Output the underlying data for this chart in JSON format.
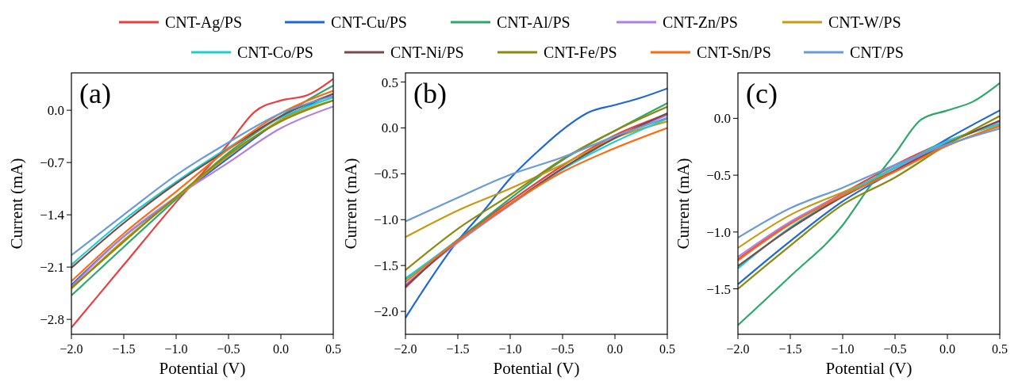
{
  "chart_data": [
    {
      "type": "line",
      "annotations": [
        "(a)"
      ],
      "xlabel": "Potential (V)",
      "ylabel": "Current (mA)",
      "xlim": [
        -2,
        0.5
      ],
      "ylim": [
        -3.0,
        0.5
      ],
      "xticks": [
        {
          "value": -2,
          "label": "−2.0"
        },
        -1.5,
        {
          "value": -1,
          "label": "−1.0"
        },
        -0.5,
        {
          "value": 0,
          "label": "0.0"
        },
        0.5
      ],
      "yticks": [
        {
          "value": 0,
          "label": "0.0"
        },
        -0.7,
        -1.4,
        -2.1,
        -2.8
      ],
      "legend": "top",
      "x": [
        -2,
        -1.5,
        -1,
        -0.5,
        0,
        0.5
      ],
      "series": [
        {
          "name": "CNT-Ag/PS",
          "color": "#e8403f",
          "x": [
            -2,
            -1.5,
            -1,
            -0.5,
            -0.25,
            0,
            0.25,
            0.5
          ],
          "values": [
            -2.91,
            -2.07,
            -1.23,
            -0.45,
            -0.02,
            0.13,
            0.2,
            0.42
          ]
        },
        {
          "name": "CNT-Cu/PS",
          "color": "#1f66d6",
          "values": [
            -2.34,
            -1.69,
            -1.17,
            -0.64,
            -0.13,
            0.22
          ]
        },
        {
          "name": "CNT-Al/PS",
          "color": "#2ea86a",
          "values": [
            -2.48,
            -1.83,
            -1.19,
            -0.57,
            -0.08,
            0.33
          ]
        },
        {
          "name": "CNT-Zn/PS",
          "color": "#b07fe0",
          "values": [
            -2.36,
            -1.69,
            -1.16,
            -0.7,
            -0.24,
            0.05
          ]
        },
        {
          "name": "CNT-W/PS",
          "color": "#c99a10",
          "values": [
            -2.39,
            -1.74,
            -1.17,
            -0.61,
            -0.13,
            0.13
          ]
        },
        {
          "name": "CNT-Co/PS",
          "color": "#1ccfcf",
          "values": [
            -2.07,
            -1.47,
            -0.96,
            -0.5,
            -0.1,
            0.17
          ]
        },
        {
          "name": "CNT-Ni/PS",
          "color": "#7a4a4a",
          "values": [
            -2.11,
            -1.51,
            -0.98,
            -0.52,
            -0.08,
            0.22
          ]
        },
        {
          "name": "CNT-Fe/PS",
          "color": "#8a8a10",
          "values": [
            -2.38,
            -1.76,
            -1.16,
            -0.59,
            -0.15,
            0.13
          ]
        },
        {
          "name": "CNT-Sn/PS",
          "color": "#ff6a10",
          "values": [
            -2.29,
            -1.65,
            -1.09,
            -0.52,
            -0.04,
            0.26
          ]
        },
        {
          "name": "CNT/PS",
          "color": "#6a9bd6",
          "values": [
            -1.94,
            -1.4,
            -0.87,
            -0.43,
            -0.04,
            0.19
          ]
        }
      ]
    },
    {
      "type": "line",
      "annotations": [
        "(b)"
      ],
      "xlabel": "Potential (V)",
      "ylabel": "Current (mA)",
      "xlim": [
        -2,
        0.5
      ],
      "ylim": [
        -2.25,
        0.6
      ],
      "xticks": [
        {
          "value": -2,
          "label": "−2.0"
        },
        -1.5,
        {
          "value": -1,
          "label": "−1.0"
        },
        -0.5,
        {
          "value": 0,
          "label": "0.0"
        },
        0.5
      ],
      "yticks": [
        0.5,
        {
          "value": 0,
          "label": "0.0"
        },
        -0.5,
        {
          "value": -1,
          "label": "−1.0"
        },
        -1.5,
        {
          "value": -2,
          "label": "−2.0"
        }
      ],
      "x": [
        -2,
        -1.5,
        -1,
        -0.5,
        0,
        0.5
      ],
      "series": [
        {
          "color": "#e8403f",
          "values": [
            -1.74,
            -1.22,
            -0.8,
            -0.41,
            -0.08,
            0.15
          ]
        },
        {
          "color": "#1f66d6",
          "x": [
            -2,
            -1.5,
            -1.25,
            -1,
            -0.75,
            -0.5,
            -0.25,
            0,
            0.25,
            0.5
          ],
          "values": [
            -2.07,
            -1.23,
            -0.9,
            -0.55,
            -0.27,
            -0.02,
            0.17,
            0.25,
            0.33,
            0.43
          ]
        },
        {
          "color": "#2ea86a",
          "values": [
            -1.65,
            -1.22,
            -0.77,
            -0.35,
            -0.03,
            0.27
          ]
        },
        {
          "color": "#b07fe0",
          "values": [
            -1.71,
            -1.25,
            -0.84,
            -0.45,
            -0.11,
            0.14
          ]
        },
        {
          "color": "#c99a10",
          "values": [
            -1.19,
            -0.9,
            -0.66,
            -0.4,
            -0.11,
            0.07
          ]
        },
        {
          "color": "#1ccfcf",
          "values": [
            -1.64,
            -1.23,
            -0.83,
            -0.45,
            -0.15,
            0.1
          ]
        },
        {
          "color": "#7a4a4a",
          "values": [
            -1.73,
            -1.23,
            -0.83,
            -0.44,
            -0.11,
            0.16
          ]
        },
        {
          "color": "#8a8a10",
          "values": [
            -1.55,
            -1.1,
            -0.73,
            -0.34,
            -0.03,
            0.23
          ]
        },
        {
          "color": "#ff6a10",
          "values": [
            -1.68,
            -1.23,
            -0.83,
            -0.48,
            -0.22,
            0.0
          ]
        },
        {
          "color": "#6a9bd6",
          "values": [
            -1.02,
            -0.76,
            -0.51,
            -0.32,
            -0.09,
            0.11
          ]
        }
      ]
    },
    {
      "type": "line",
      "annotations": [
        "(c)"
      ],
      "xlabel": "Potential (V)",
      "ylabel": "Current (mA)",
      "xlim": [
        -2,
        0.5
      ],
      "ylim": [
        -1.9,
        0.4
      ],
      "xticks": [
        {
          "value": -2,
          "label": "−2.0"
        },
        -1.5,
        {
          "value": -1,
          "label": "−1.0"
        },
        -0.5,
        {
          "value": 0,
          "label": "0.0"
        },
        0.5
      ],
      "yticks": [
        {
          "value": 0,
          "label": "0.0"
        },
        -0.5,
        {
          "value": -1,
          "label": "−1.0"
        },
        -1.5
      ],
      "x": [
        -2,
        -1.5,
        -1,
        -0.5,
        0,
        0.5
      ],
      "series": [
        {
          "color": "#e8403f",
          "values": [
            -1.24,
            -0.92,
            -0.66,
            -0.41,
            -0.2,
            -0.05
          ]
        },
        {
          "color": "#1f66d6",
          "values": [
            -1.46,
            -1.08,
            -0.73,
            -0.46,
            -0.18,
            0.07
          ]
        },
        {
          "color": "#2ea86a",
          "x": [
            -2,
            -1.5,
            -1,
            -0.75,
            -0.5,
            -0.25,
            0,
            0.25,
            0.5
          ],
          "values": [
            -1.82,
            -1.39,
            -0.94,
            -0.61,
            -0.31,
            -0.01,
            0.07,
            0.15,
            0.31
          ]
        },
        {
          "color": "#b07fe0",
          "values": [
            -1.22,
            -0.91,
            -0.67,
            -0.44,
            -0.21,
            -0.03
          ]
        },
        {
          "color": "#c99a10",
          "values": [
            -1.14,
            -0.85,
            -0.65,
            -0.46,
            -0.24,
            -0.06
          ]
        },
        {
          "color": "#1ccfcf",
          "values": [
            -1.32,
            -0.96,
            -0.68,
            -0.43,
            -0.2,
            -0.05
          ]
        },
        {
          "color": "#7a4a4a",
          "values": [
            -1.3,
            -0.97,
            -0.69,
            -0.46,
            -0.22,
            -0.02
          ]
        },
        {
          "color": "#8a8a10",
          "values": [
            -1.5,
            -1.12,
            -0.76,
            -0.52,
            -0.23,
            0.02
          ]
        },
        {
          "color": "#ff6a10",
          "values": [
            -1.25,
            -0.93,
            -0.68,
            -0.47,
            -0.24,
            -0.07
          ]
        },
        {
          "color": "#6a9bd6",
          "values": [
            -1.05,
            -0.79,
            -0.61,
            -0.41,
            -0.23,
            -0.09
          ]
        }
      ]
    }
  ]
}
